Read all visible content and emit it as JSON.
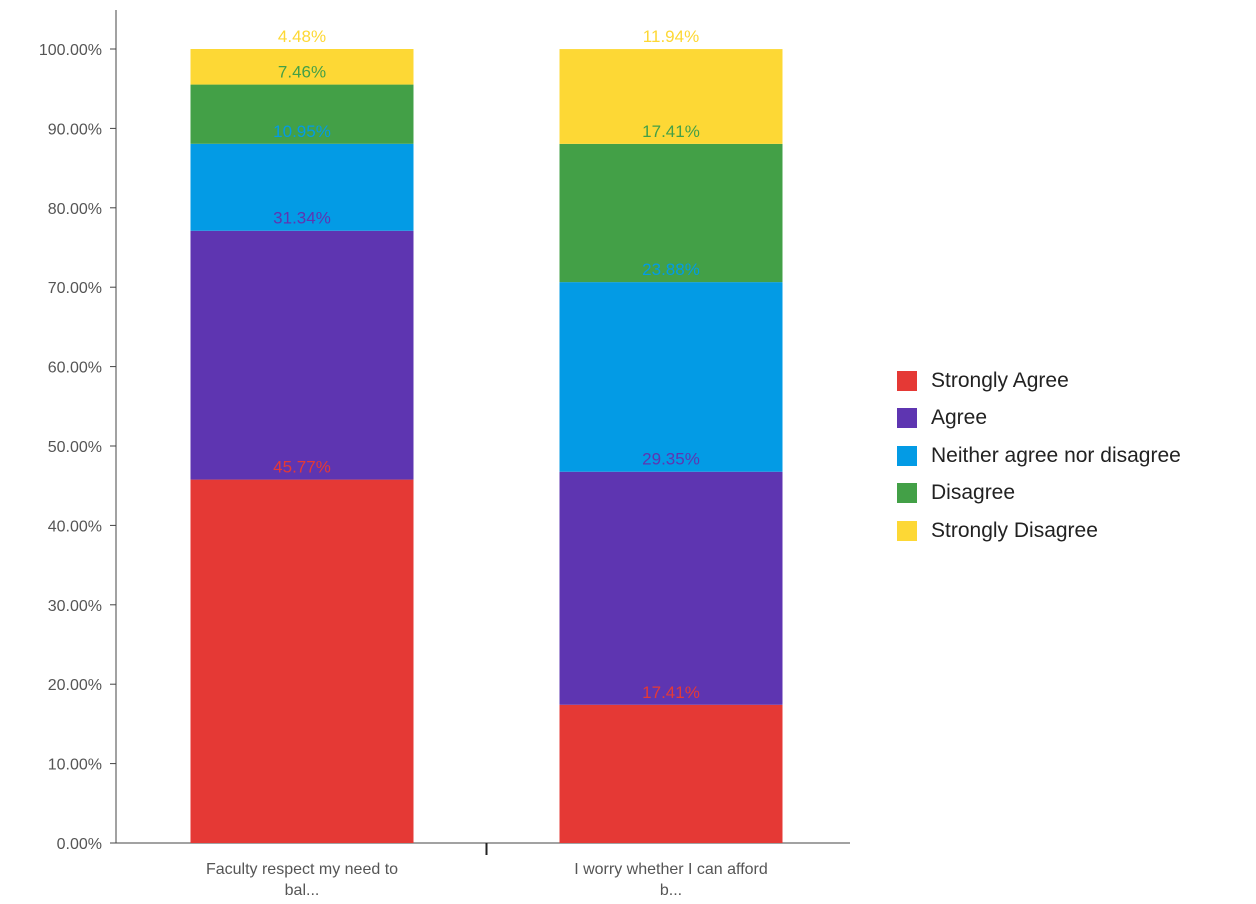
{
  "chart_data": {
    "type": "bar",
    "stacked": true,
    "title": "",
    "xlabel": "",
    "ylabel": "",
    "ylim": [
      0,
      100
    ],
    "y_ticks": [
      "0.00%",
      "10.00%",
      "20.00%",
      "30.00%",
      "40.00%",
      "50.00%",
      "60.00%",
      "70.00%",
      "80.00%",
      "90.00%",
      "100.00%"
    ],
    "categories": [
      [
        "Faculty respect my need to",
        "bal..."
      ],
      [
        "I worry whether I can afford",
        "b..."
      ]
    ],
    "series": [
      {
        "name": "Strongly Agree",
        "color": "#e53935",
        "values": [
          45.77,
          17.41
        ],
        "labels": [
          "45.77%",
          "17.41%"
        ]
      },
      {
        "name": "Agree",
        "color": "#5e35b1",
        "values": [
          31.34,
          29.35
        ],
        "labels": [
          "31.34%",
          "29.35%"
        ]
      },
      {
        "name": "Neither agree nor disagree",
        "color": "#039be5",
        "values": [
          10.95,
          23.88
        ],
        "labels": [
          "10.95%",
          "23.88%"
        ]
      },
      {
        "name": "Disagree",
        "color": "#43a047",
        "values": [
          7.46,
          17.41
        ],
        "labels": [
          "7.46%",
          "17.41%"
        ]
      },
      {
        "name": "Strongly Disagree",
        "color": "#fdd835",
        "values": [
          4.48,
          11.94
        ],
        "labels": [
          "4.48%",
          "11.94%"
        ]
      }
    ],
    "grid": false,
    "legend_position": "right"
  }
}
